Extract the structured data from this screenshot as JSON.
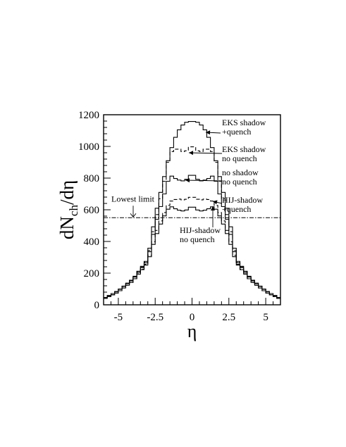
{
  "chart_data": {
    "type": "line",
    "title": "",
    "xlabel": "η",
    "ylabel_main": "dN",
    "ylabel_sub": "ch",
    "ylabel_tail": "/dη",
    "xlim": [
      -6,
      6
    ],
    "ylim": [
      0,
      1200
    ],
    "xticks": [
      -5,
      -2.5,
      0,
      2.5,
      5
    ],
    "xtick_labels": [
      "-5",
      "-2.5",
      "0",
      "2.5",
      "5"
    ],
    "yticks": [
      0,
      200,
      400,
      600,
      800,
      1000,
      1200
    ],
    "ytick_labels": [
      "0",
      "200",
      "400",
      "600",
      "800",
      "1000",
      "1200"
    ],
    "reference_line": {
      "label": "Lowest limit",
      "y": 550
    },
    "series": [
      {
        "key": "eks_quench",
        "style": "solid",
        "label": [
          "EKS shadow",
          "+quench"
        ],
        "eta": [
          0,
          0.5,
          1,
          1.5,
          2,
          2.5,
          3,
          4,
          5,
          6
        ],
        "values": [
          1160,
          1150,
          1090,
          960,
          760,
          560,
          290,
          165,
          90,
          40
        ]
      },
      {
        "key": "eks_noquench",
        "style": "dashed",
        "label": [
          "EKS shadow",
          "no quench"
        ],
        "eta": [
          0,
          0.5,
          1,
          1.5,
          2,
          2.5,
          3,
          4,
          5,
          6
        ],
        "values": [
          1010,
          960,
          990,
          960,
          720,
          520,
          285,
          160,
          90,
          40
        ]
      },
      {
        "key": "noshadow_noquench",
        "style": "solid",
        "label": [
          "no shadow",
          "no quench"
        ],
        "eta": [
          0,
          0.5,
          1,
          1.5,
          2,
          2.5,
          3,
          4,
          5,
          6
        ],
        "values": [
          830,
          780,
          790,
          820,
          660,
          500,
          280,
          160,
          90,
          40
        ]
      },
      {
        "key": "hij_quench",
        "style": "dashed",
        "label": [
          "HIJ-shadow",
          "+quench"
        ],
        "eta": [
          0,
          0.5,
          1,
          1.5,
          2,
          2.5,
          3,
          4,
          5,
          6
        ],
        "values": [
          685,
          660,
          670,
          650,
          560,
          440,
          270,
          150,
          80,
          35
        ]
      },
      {
        "key": "hij_noquench",
        "style": "solid",
        "label": [
          "HIJ-shadow",
          "no quench"
        ],
        "eta": [
          0,
          0.5,
          1,
          1.5,
          2,
          2.5,
          3,
          4,
          5,
          6
        ],
        "values": [
          625,
          590,
          600,
          625,
          540,
          420,
          265,
          150,
          80,
          35
        ]
      }
    ]
  }
}
